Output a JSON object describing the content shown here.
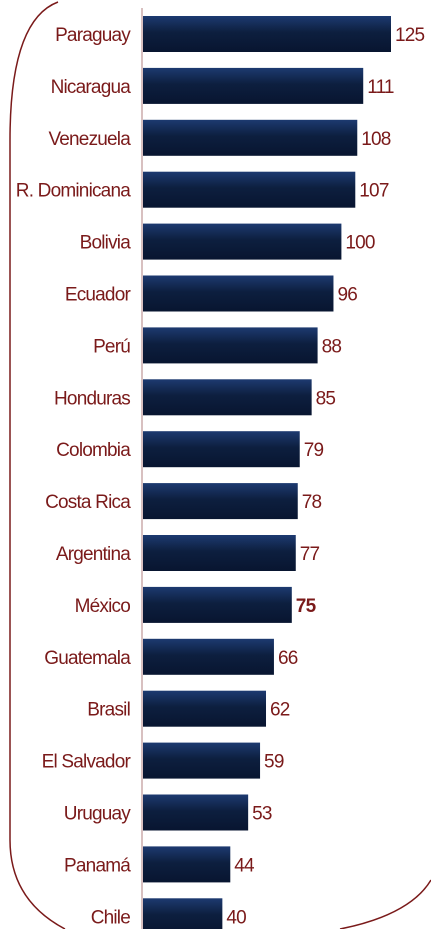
{
  "colors": {
    "bar_dark": "#0d1f3f",
    "bar_mid": "#1d3a70",
    "text": "#7a1a1a",
    "frame": "#7a1a1a",
    "axis": "#b08080"
  },
  "chart_data": {
    "type": "bar",
    "orientation": "horizontal",
    "categories": [
      "Paraguay",
      "Nicaragua",
      "Venezuela",
      "R. Dominicana",
      "Bolivia",
      "Ecuador",
      "Perú",
      "Honduras",
      "Colombia",
      "Costa Rica",
      "Argentina",
      "México",
      "Guatemala",
      "Brasil",
      "El Salvador",
      "Uruguay",
      "Panamá",
      "Chile"
    ],
    "values": [
      125,
      111,
      108,
      107,
      100,
      96,
      88,
      85,
      79,
      78,
      77,
      75,
      66,
      62,
      59,
      53,
      44,
      40
    ],
    "highlight": "México",
    "value_labels": true,
    "legend": false,
    "grid": false,
    "xlim": [
      0,
      125
    ]
  }
}
